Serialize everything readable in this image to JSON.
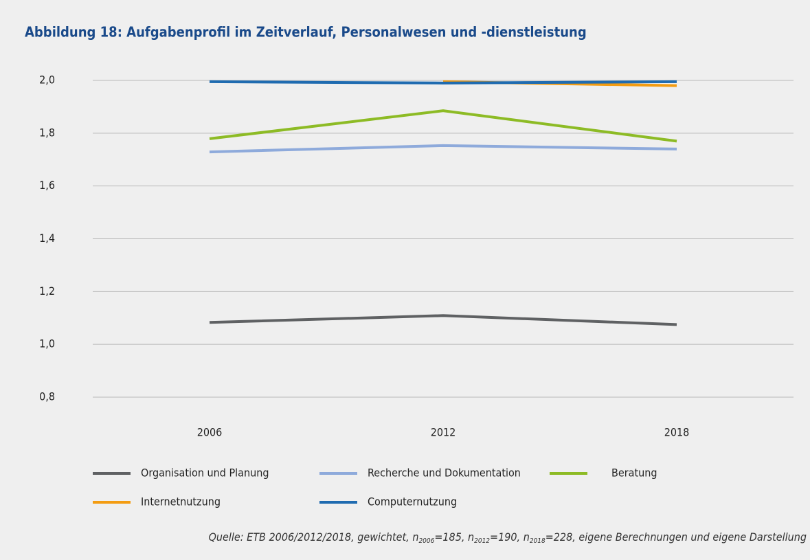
{
  "chart_data": {
    "type": "line",
    "title": "Abbildung 18: Aufgabenprofil im Zeitverlauf, Personalwesen und -dienstleistung",
    "categories": [
      "2006",
      "2012",
      "2018"
    ],
    "series": [
      {
        "name": "Organisation und Planung",
        "color": "#5f6163",
        "values": [
          1.083,
          1.109,
          1.075
        ]
      },
      {
        "name": "Recherche und Dokumentation",
        "color": "#8eaadb",
        "values": [
          1.729,
          1.753,
          1.74
        ]
      },
      {
        "name": "Beratung",
        "color": "#8dbb25",
        "values": [
          1.779,
          1.885,
          1.77
        ]
      },
      {
        "name": "Internetnutzung",
        "color": "#f39c12",
        "values": [
          null,
          1.995,
          1.98
        ]
      },
      {
        "name": "Computernutzung",
        "color": "#1f6bb0",
        "values": [
          1.995,
          1.99,
          1.995
        ]
      }
    ],
    "ylim": [
      0.8,
      2.0
    ],
    "yticks": [
      {
        "value": 0.8,
        "label": "0,8"
      },
      {
        "value": 1.0,
        "label": "1,0"
      },
      {
        "value": 1.2,
        "label": "1,2"
      },
      {
        "value": 1.4,
        "label": "1,4"
      },
      {
        "value": 1.6,
        "label": "1,6"
      },
      {
        "value": 1.8,
        "label": "1,8"
      },
      {
        "value": 2.0,
        "label": "2,0"
      }
    ],
    "grid": true,
    "legend": "bottom",
    "source": [
      "Quelle: ETB 2006/2012/2018, gewichtet, n",
      "2006",
      "=185, n",
      "2012",
      "=190, n",
      "2018",
      "=228, eigene Berechnungen und eigene Darstellung"
    ]
  }
}
